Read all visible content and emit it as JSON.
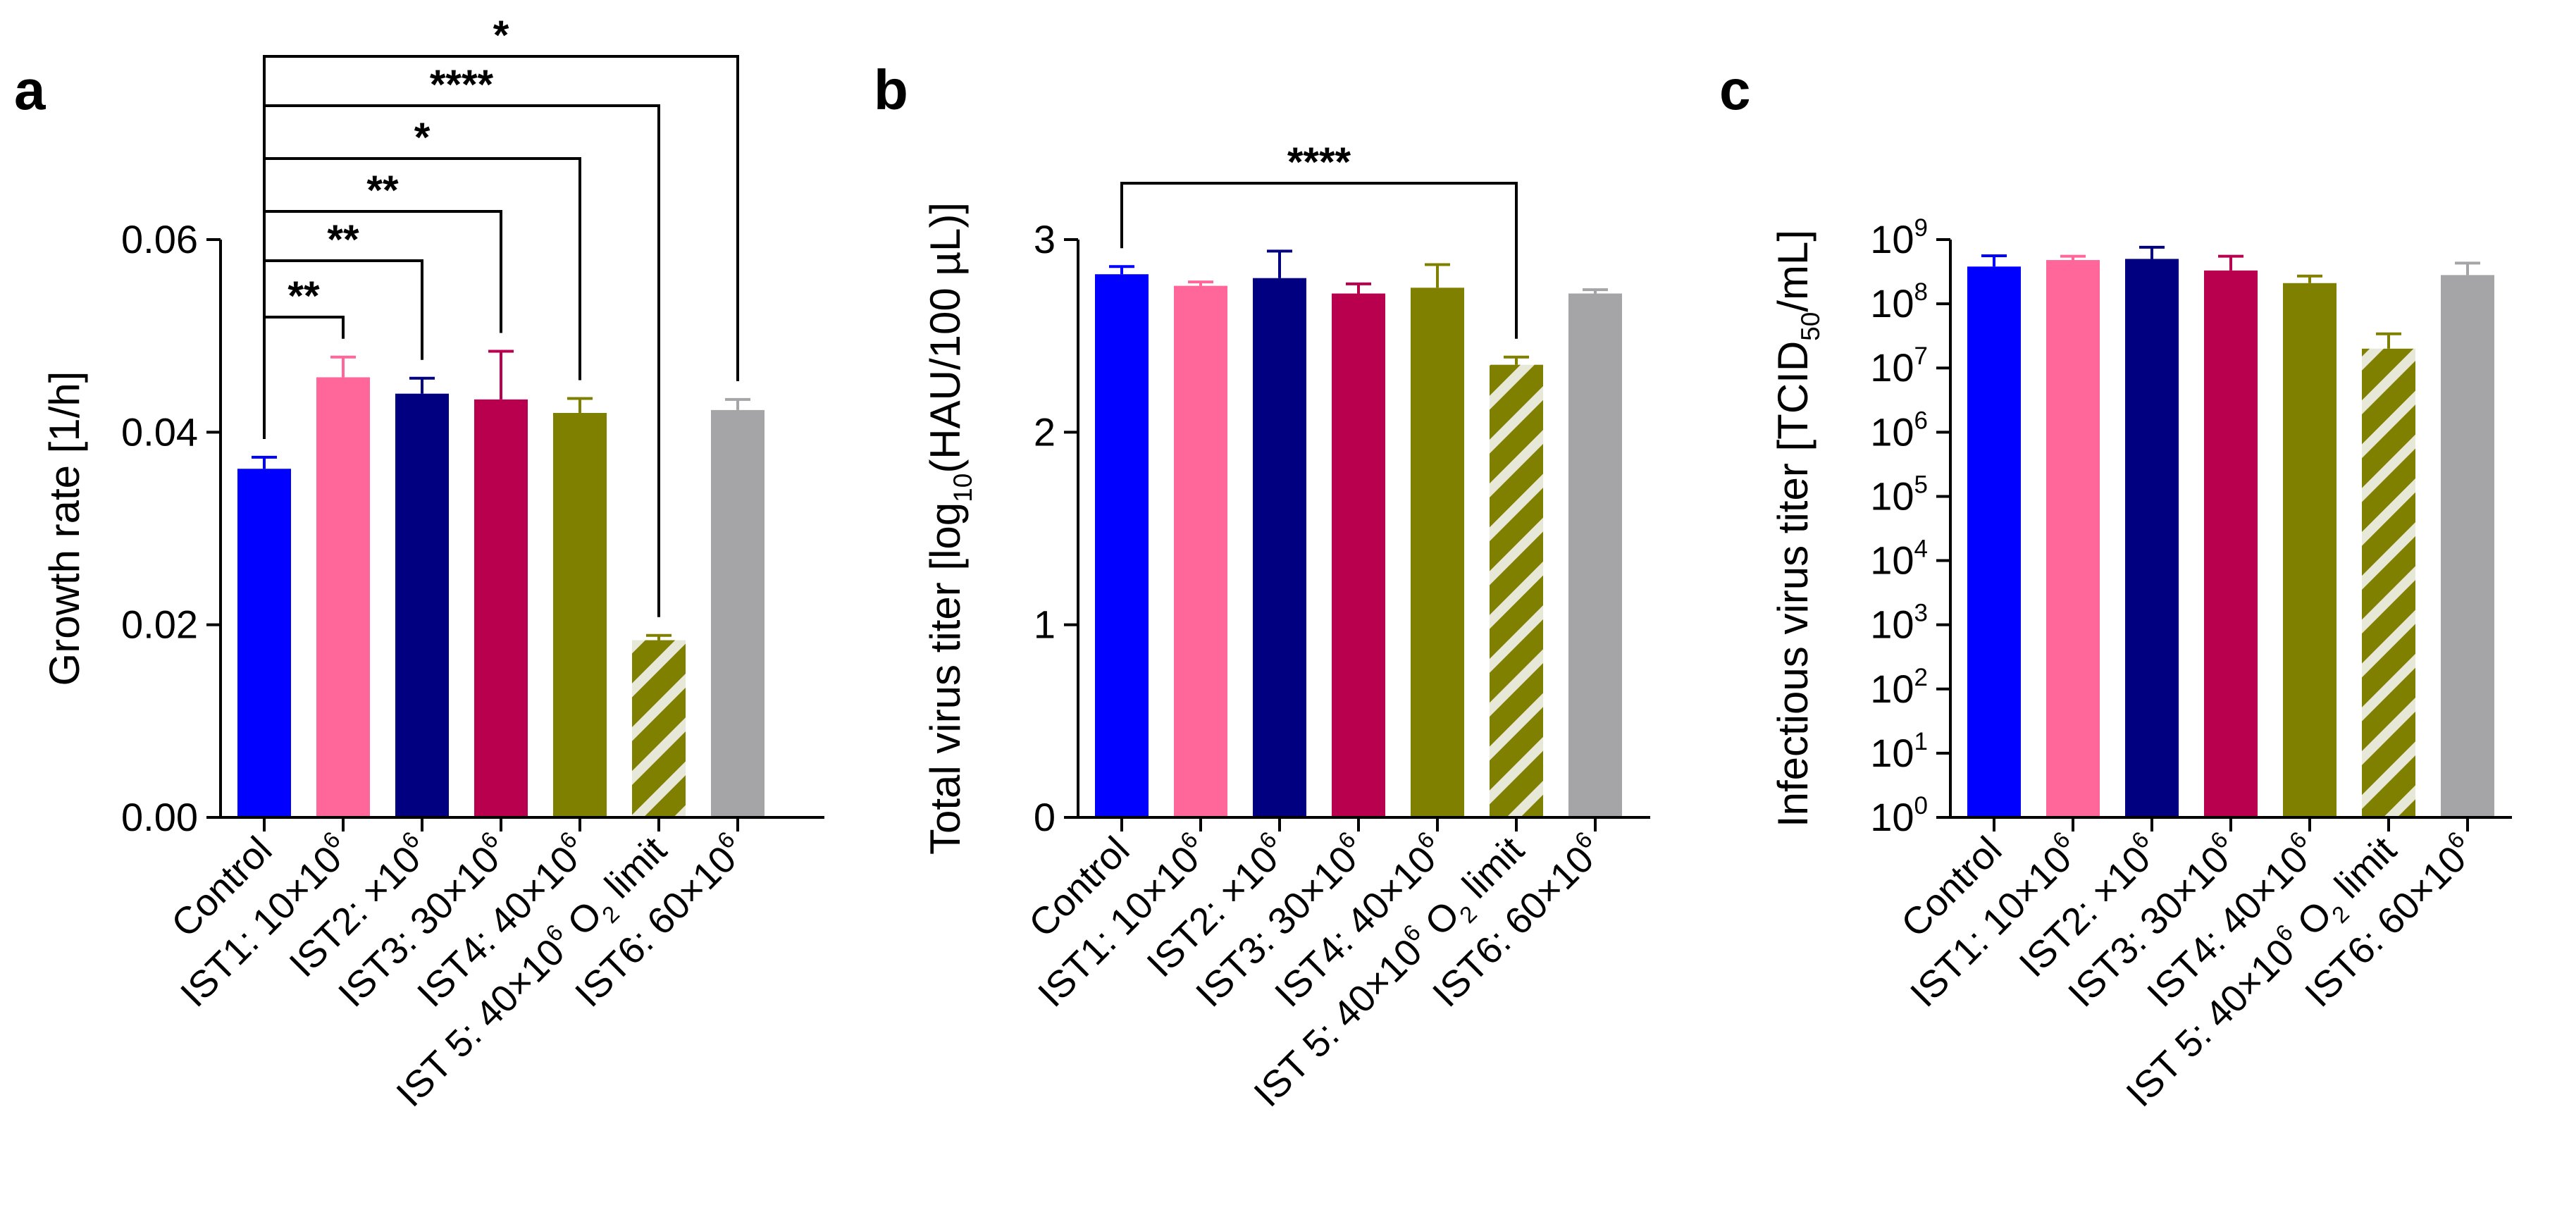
{
  "colors": {
    "control": "#0000ff",
    "ist1": "#ff6699",
    "ist2": "#000080",
    "ist3": "#b8004f",
    "ist4": "#808000",
    "ist5": "#808000",
    "ist5_stripe": "#e8e8d8",
    "ist6": "#a5a5a8",
    "axis": "#000000"
  },
  "categories": [
    "Control",
    "IST1: 10×10^6",
    "IST2: ×10^6",
    "IST3: 30×10^6",
    "IST4: 40×10^6",
    "IST 5: 40×10^6 O2 limit",
    "IST6: 60×10^6"
  ],
  "chart_data": [
    {
      "panel": "a",
      "type": "bar",
      "ylabel": "Growth rate [1/h]",
      "ylim": [
        0,
        0.06
      ],
      "yticks": [
        "0.00",
        "0.02",
        "0.04",
        "0.06"
      ],
      "values": [
        0.0362,
        0.0457,
        0.044,
        0.0434,
        0.042,
        0.0184,
        0.0423
      ],
      "errors": [
        0.0012,
        0.0021,
        0.0016,
        0.005,
        0.0015,
        0.0005,
        0.0011
      ],
      "hatched": [
        false,
        false,
        false,
        false,
        false,
        true,
        false
      ],
      "brackets": [
        {
          "from": 0,
          "to": 1,
          "label": "**"
        },
        {
          "from": 0,
          "to": 2,
          "label": "**"
        },
        {
          "from": 0,
          "to": 3,
          "label": "**"
        },
        {
          "from": 0,
          "to": 4,
          "label": "*"
        },
        {
          "from": 0,
          "to": 5,
          "label": "****"
        },
        {
          "from": 0,
          "to": 6,
          "label": "*"
        }
      ]
    },
    {
      "panel": "b",
      "type": "bar",
      "ylabel": "Total virus titer [log10(HAU/100 µL)]",
      "ylim": [
        0,
        3
      ],
      "yticks": [
        "0",
        "1",
        "2",
        "3"
      ],
      "values": [
        2.82,
        2.76,
        2.8,
        2.72,
        2.75,
        2.35,
        2.72
      ],
      "errors": [
        0.04,
        0.02,
        0.14,
        0.05,
        0.12,
        0.04,
        0.02
      ],
      "hatched": [
        false,
        false,
        false,
        false,
        false,
        true,
        false
      ],
      "brackets": [
        {
          "from": 0,
          "to": 5,
          "label": "****"
        }
      ]
    },
    {
      "panel": "c",
      "type": "bar",
      "ylabel": "Infectious virus titer [TCID50/mL]",
      "scale": "log",
      "ylim": [
        1,
        1000000000
      ],
      "yticks": [
        "10^0",
        "10^1",
        "10^2",
        "10^3",
        "10^4",
        "10^5",
        "10^6",
        "10^7",
        "10^8",
        "10^9"
      ],
      "values": [
        380000000,
        480000000,
        500000000,
        330000000,
        210000000,
        20000000,
        280000000
      ],
      "errors": [
        180000000,
        70000000,
        260000000,
        220000000,
        60000000,
        14000000,
        150000000
      ],
      "hatched": [
        false,
        false,
        false,
        false,
        false,
        true,
        false
      ],
      "brackets": []
    }
  ]
}
